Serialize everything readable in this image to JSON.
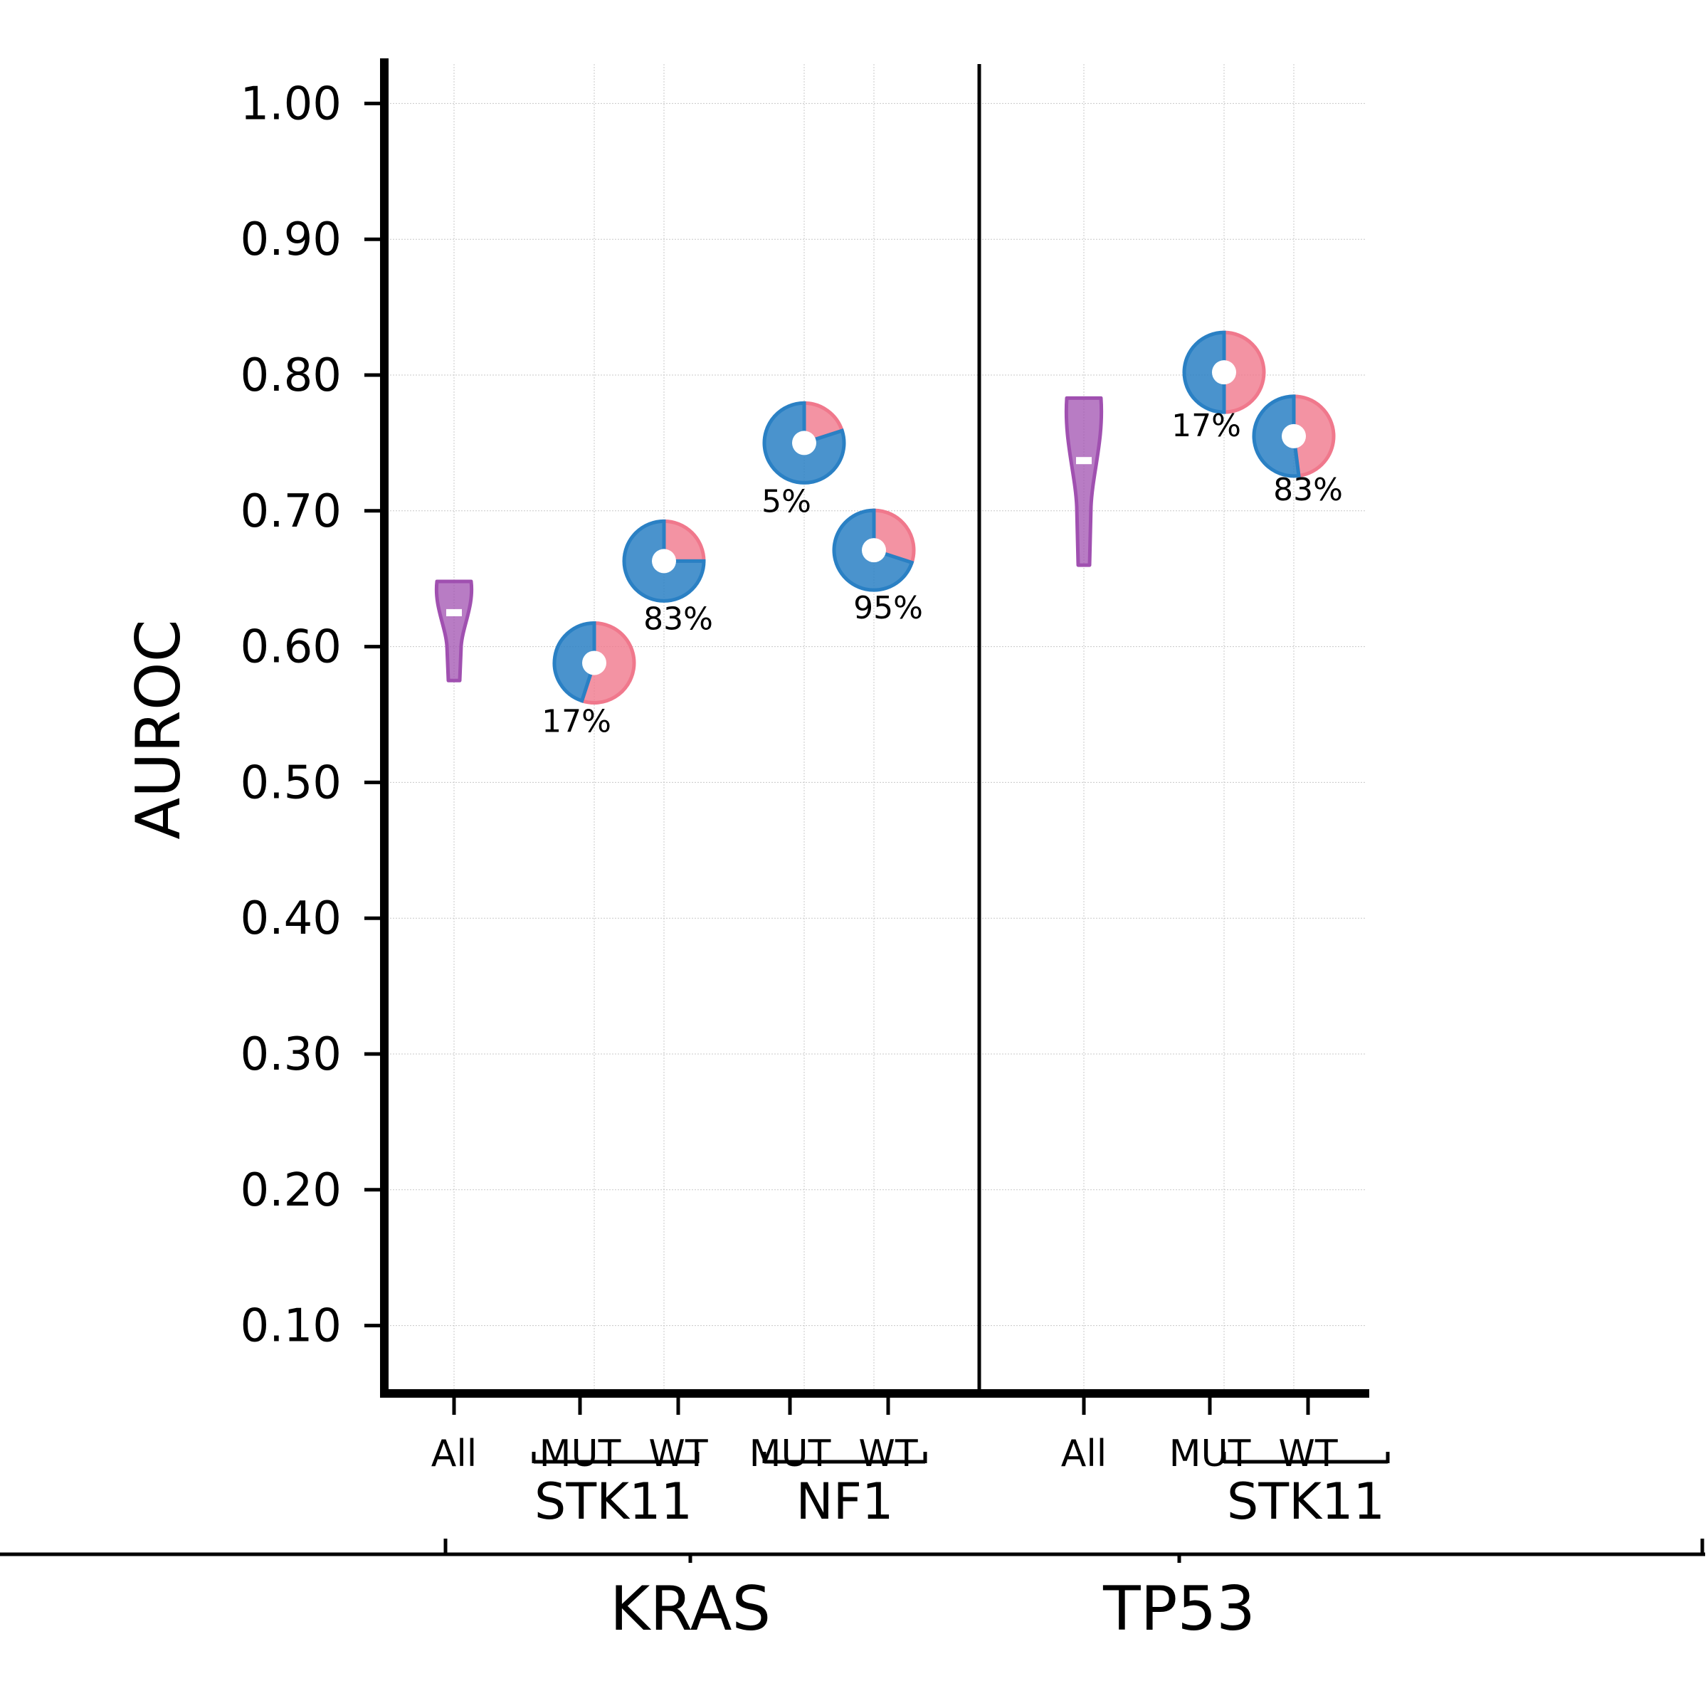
{
  "chart_data": {
    "type": "scatter",
    "ylabel": "AUROC",
    "ylim": [
      0.05,
      1.03
    ],
    "yticks": [
      "1.00",
      "0.90",
      "0.80",
      "0.70",
      "0.60",
      "0.50",
      "0.40",
      "0.30",
      "0.20",
      "0.10"
    ],
    "grid": true,
    "colors": {
      "violin": "#a050b0",
      "pie_a": "#f0788c",
      "pie_b": "#2a80c4",
      "axis": "#000000",
      "grid": "#c8c8c8"
    },
    "groups": [
      {
        "label": "KRAS",
        "subgroups": [
          {
            "label": "All",
            "type": "violin",
            "median": 0.625,
            "min": 0.575,
            "max": 0.648
          },
          {
            "label": "STK11",
            "categories": [
              {
                "label": "MUT",
                "type": "pie",
                "auroc": 0.588,
                "pct_label": "17%",
                "blue_fraction": 0.45
              },
              {
                "label": "WT",
                "type": "pie",
                "auroc": 0.663,
                "pct_label": "83%",
                "blue_fraction": 0.75
              }
            ]
          },
          {
            "label": "NF1",
            "categories": [
              {
                "label": "MUT",
                "type": "pie",
                "auroc": 0.75,
                "pct_label": "5%",
                "blue_fraction": 0.8
              },
              {
                "label": "WT",
                "type": "pie",
                "auroc": 0.671,
                "pct_label": "95%",
                "blue_fraction": 0.7
              }
            ]
          }
        ]
      },
      {
        "label": "TP53",
        "subgroups": [
          {
            "label": "All",
            "type": "violin",
            "median": 0.737,
            "min": 0.66,
            "max": 0.783
          },
          {
            "label": "STK11",
            "categories": [
              {
                "label": "MUT",
                "type": "pie",
                "auroc": 0.802,
                "pct_label": "17%",
                "blue_fraction": 0.5
              },
              {
                "label": "WT",
                "type": "pie",
                "auroc": 0.755,
                "pct_label": "83%",
                "blue_fraction": 0.52
              }
            ]
          }
        ]
      }
    ]
  }
}
